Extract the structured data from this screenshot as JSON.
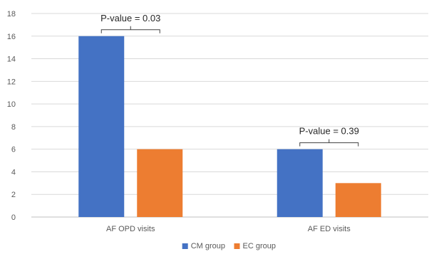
{
  "chart_data": {
    "type": "bar",
    "categories": [
      "AF OPD visits",
      "AF ED visits"
    ],
    "series": [
      {
        "name": "CM group",
        "values": [
          16,
          6
        ],
        "color": "#4472C4"
      },
      {
        "name": "EC group",
        "values": [
          6,
          3
        ],
        "color": "#ED7D31"
      }
    ],
    "ylim": [
      0,
      18
    ],
    "yticks": [
      0,
      2,
      4,
      6,
      8,
      10,
      12,
      14,
      16,
      18
    ],
    "grid": true,
    "legend_position": "bottom-center",
    "annotations": [
      {
        "category": "AF OPD visits",
        "text": "P-value = 0.03"
      },
      {
        "category": "AF ED visits",
        "text": "P-value = 0.39"
      }
    ]
  }
}
